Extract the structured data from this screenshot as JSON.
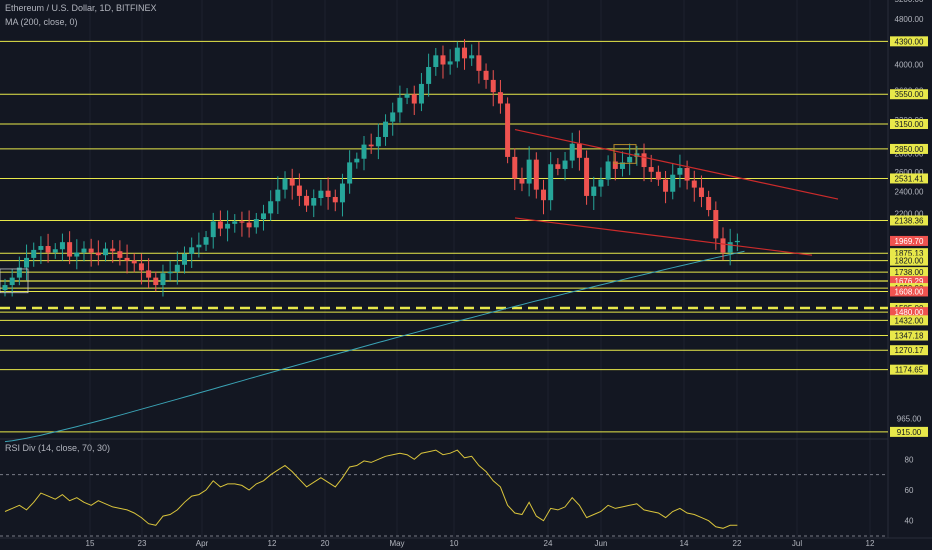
{
  "legend": {
    "main": "Ethereum / U.S. Dollar, 1D, BITFINEX",
    "ma": "MA (200, close, 0)",
    "rsi": "RSI Div (14, close, 70, 30)"
  },
  "colors": {
    "background": "#131722",
    "up": "#26a69a",
    "down": "#ef5350",
    "hline": "#e8e84a",
    "trendline": "#cc2b2b",
    "ma": "#3aa3b5",
    "rsi": "#d9c43c"
  },
  "chart_data": [
    {
      "type": "candlestick",
      "title": "Ethereum / U.S. Dollar, 1D, BITFINEX",
      "y_scale": "log",
      "ylim": [
        900,
        5100
      ],
      "x_ticks": [
        "15",
        "23",
        "Apr",
        "12",
        "20",
        "May",
        "10",
        "24",
        "Jun",
        "14",
        "22",
        "Jul",
        "12"
      ],
      "y_ticks": [
        "5200.00",
        "4800.00",
        "4000.00",
        "3600.00",
        "3200.00",
        "2800.00",
        "2600.00",
        "2400.00",
        "2200.00",
        "965.00"
      ],
      "closes": [
        1650,
        1700,
        1770,
        1840,
        1900,
        1930,
        1880,
        1905,
        1960,
        1850,
        1880,
        1910,
        1880,
        1860,
        1910,
        1890,
        1840,
        1820,
        1800,
        1750,
        1700,
        1650,
        1730,
        1740,
        1790,
        1870,
        1920,
        1940,
        2000,
        2130,
        2070,
        2110,
        2130,
        2120,
        2080,
        2150,
        2200,
        2310,
        2420,
        2530,
        2460,
        2360,
        2270,
        2340,
        2410,
        2350,
        2300,
        2480,
        2700,
        2740,
        2900,
        2880,
        2990,
        3180,
        3300,
        3500,
        3550,
        3420,
        3700,
        3960,
        4150,
        4000,
        4050,
        4280,
        4100,
        4150,
        3900,
        3760,
        3580,
        3420,
        2760,
        2530,
        2480,
        2730,
        2420,
        2320,
        2680,
        2630,
        2720,
        2910,
        2750,
        2360,
        2450,
        2520,
        2710,
        2630,
        2700,
        2760,
        2800,
        2650,
        2600,
        2520,
        2400,
        2570,
        2640,
        2510,
        2440,
        2350,
        2230,
        1990,
        1880,
        1960,
        1970
      ],
      "horizontal_levels": [
        {
          "label": "4390.00",
          "value": 4390
        },
        {
          "label": "3550.00",
          "value": 3550
        },
        {
          "label": "3150.00",
          "value": 3150
        },
        {
          "label": "2850.00",
          "value": 2850
        },
        {
          "label": "2531.41",
          "value": 2531.41
        },
        {
          "label": "2138.36",
          "value": 2138.36
        },
        {
          "label": "1969.70",
          "value": 1969.7,
          "style": "current-price"
        },
        {
          "label": "1875.13",
          "value": 1875.13
        },
        {
          "label": "1820.00",
          "value": 1820
        },
        {
          "label": "1738.00",
          "value": 1738
        },
        {
          "label": "1678.00",
          "value": 1678
        },
        {
          "label": "1676.29",
          "value": 1676.29,
          "style": "red"
        },
        {
          "label": "1630.00",
          "value": 1630
        },
        {
          "label": "1608.00",
          "value": 1608,
          "style": "red"
        },
        {
          "label": "1505.00",
          "value": 1505,
          "style": "dashed"
        },
        {
          "label": "1480.00",
          "value": 1480,
          "style": "red"
        },
        {
          "label": "1432.00",
          "value": 1432
        },
        {
          "label": "1347.18",
          "value": 1347.18
        },
        {
          "label": "1270.17",
          "value": 1270.17
        },
        {
          "label": "1174.65",
          "value": 1174.65
        },
        {
          "label": "915.00",
          "value": 915
        }
      ]
    },
    {
      "type": "line",
      "title": "RSI Div (14, close, 70, 30)",
      "ylim": [
        30,
        90
      ],
      "y_ticks": [
        "80",
        "60",
        "40"
      ],
      "bands": [
        70,
        30
      ],
      "values": [
        46,
        48,
        50,
        47,
        52,
        58,
        56,
        54,
        57,
        53,
        55,
        52,
        50,
        53,
        51,
        49,
        48,
        47,
        45,
        42,
        38,
        37,
        43,
        44,
        47,
        52,
        56,
        57,
        60,
        66,
        62,
        64,
        64,
        63,
        60,
        64,
        66,
        70,
        73,
        76,
        72,
        67,
        62,
        65,
        68,
        65,
        62,
        68,
        75,
        76,
        79,
        78,
        80,
        82,
        83,
        84,
        83,
        80,
        84,
        85,
        86,
        83,
        84,
        86,
        81,
        82,
        76,
        72,
        66,
        62,
        50,
        45,
        44,
        52,
        43,
        40,
        48,
        47,
        49,
        55,
        50,
        42,
        44,
        46,
        50,
        48,
        49,
        50,
        51,
        47,
        46,
        45,
        42,
        46,
        48,
        45,
        44,
        42,
        40,
        36,
        35,
        37,
        37
      ]
    }
  ]
}
